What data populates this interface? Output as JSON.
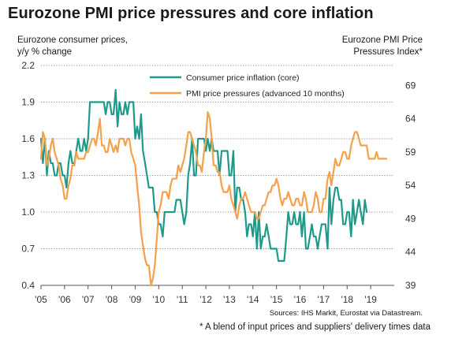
{
  "title": "Eurozone PMI price pressures and core inflation",
  "chart_data": {
    "type": "line",
    "title": "Eurozone PMI price pressures and core inflation",
    "ylabel_left": [
      "Eurozone consumer prices,",
      "y/y % change"
    ],
    "ylabel_right": [
      "Eurozone PMI Price",
      "Pressures Index*"
    ],
    "x_ticks": [
      "'05",
      "'06",
      "'07",
      "'08",
      "'09",
      "'10",
      "'11",
      "'12",
      "'13",
      "'14",
      "'15",
      "'16",
      "'17",
      "'18",
      "'19"
    ],
    "xlim": [
      2005.0,
      2020.0
    ],
    "ylim_left": [
      0.4,
      2.2
    ],
    "ylim_right": [
      39,
      72
    ],
    "y_ticks_left": [
      "0.4",
      "0.7",
      "1.0",
      "1.3",
      "1.6",
      "1.9",
      "2.2"
    ],
    "y_ticks_right": [
      "39",
      "44",
      "49",
      "54",
      "59",
      "64",
      "69"
    ],
    "grid": "horizontal dotted",
    "legend_position": "top-center",
    "series": [
      {
        "name": "Consumer price inflation (core)",
        "axis": "left",
        "color": "#1f9a8a",
        "x": [
          2005.0,
          2005.08,
          2005.17,
          2005.25,
          2005.33,
          2005.42,
          2005.5,
          2005.58,
          2005.67,
          2005.75,
          2005.83,
          2005.92,
          2006.0,
          2006.08,
          2006.17,
          2006.25,
          2006.33,
          2006.42,
          2006.5,
          2006.58,
          2006.67,
          2006.75,
          2006.83,
          2006.92,
          2007.0,
          2007.08,
          2007.17,
          2007.25,
          2007.33,
          2007.42,
          2007.5,
          2007.58,
          2007.67,
          2007.75,
          2007.83,
          2007.92,
          2008.0,
          2008.08,
          2008.17,
          2008.25,
          2008.33,
          2008.42,
          2008.5,
          2008.58,
          2008.67,
          2008.75,
          2008.83,
          2008.92,
          2009.0,
          2009.08,
          2009.17,
          2009.25,
          2009.33,
          2009.42,
          2009.5,
          2009.58,
          2009.67,
          2009.75,
          2009.83,
          2009.92,
          2010.0,
          2010.08,
          2010.17,
          2010.25,
          2010.33,
          2010.42,
          2010.5,
          2010.58,
          2010.67,
          2010.75,
          2010.83,
          2010.92,
          2011.0,
          2011.08,
          2011.17,
          2011.25,
          2011.33,
          2011.42,
          2011.5,
          2011.58,
          2011.67,
          2011.75,
          2011.83,
          2011.92,
          2012.0,
          2012.08,
          2012.17,
          2012.25,
          2012.33,
          2012.42,
          2012.5,
          2012.58,
          2012.67,
          2012.75,
          2012.83,
          2012.92,
          2013.0,
          2013.08,
          2013.17,
          2013.25,
          2013.33,
          2013.42,
          2013.5,
          2013.58,
          2013.67,
          2013.75,
          2013.83,
          2013.92,
          2014.0,
          2014.08,
          2014.17,
          2014.25,
          2014.33,
          2014.42,
          2014.5,
          2014.58,
          2014.67,
          2014.75,
          2014.83,
          2014.92,
          2015.0,
          2015.08,
          2015.17,
          2015.25,
          2015.33,
          2015.42,
          2015.5,
          2015.58,
          2015.67,
          2015.75,
          2015.83,
          2015.92,
          2016.0,
          2016.08,
          2016.17,
          2016.25,
          2016.33,
          2016.42,
          2016.5,
          2016.58,
          2016.67,
          2016.75,
          2016.83,
          2016.92,
          2017.0,
          2017.08,
          2017.17,
          2017.25,
          2017.33,
          2017.42,
          2017.5,
          2017.58,
          2017.67,
          2017.75,
          2017.83,
          2017.92,
          2018.0,
          2018.08,
          2018.17,
          2018.25,
          2018.33,
          2018.42,
          2018.5,
          2018.58,
          2018.67,
          2018.75,
          2018.83
        ],
        "values": [
          1.6,
          1.4,
          1.6,
          1.3,
          1.5,
          1.4,
          1.4,
          1.3,
          1.3,
          1.4,
          1.4,
          1.3,
          1.3,
          1.2,
          1.4,
          1.5,
          1.4,
          1.4,
          1.5,
          1.6,
          1.5,
          1.5,
          1.6,
          1.5,
          1.6,
          1.9,
          1.9,
          1.9,
          1.9,
          1.9,
          1.9,
          1.9,
          1.9,
          1.8,
          1.9,
          1.9,
          1.8,
          1.8,
          2.0,
          1.7,
          1.9,
          1.8,
          1.8,
          1.9,
          1.8,
          1.9,
          1.9,
          1.9,
          1.6,
          1.7,
          1.6,
          1.8,
          1.5,
          1.4,
          1.3,
          1.2,
          1.2,
          1.2,
          1.0,
          1.0,
          0.9,
          0.9,
          0.8,
          1.0,
          1.0,
          1.0,
          1.0,
          1.0,
          1.0,
          1.1,
          1.1,
          1.1,
          1.0,
          0.9,
          1.0,
          1.3,
          1.4,
          1.6,
          1.3,
          1.3,
          1.6,
          1.6,
          1.6,
          1.6,
          1.5,
          1.6,
          1.5,
          1.6,
          1.5,
          1.5,
          1.5,
          1.3,
          1.5,
          1.5,
          1.5,
          1.5,
          1.3,
          1.3,
          1.5,
          1.0,
          1.2,
          1.2,
          1.1,
          1.1,
          1.0,
          0.8,
          0.9,
          0.9,
          0.8,
          1.0,
          0.7,
          1.0,
          0.7,
          0.8,
          0.8,
          0.9,
          0.8,
          0.7,
          0.7,
          0.7,
          0.7,
          0.6,
          0.6,
          0.6,
          0.6,
          0.8,
          1.0,
          0.9,
          0.9,
          1.0,
          0.9,
          0.9,
          1.0,
          0.8,
          1.0,
          0.7,
          0.7,
          0.8,
          0.9,
          0.8,
          0.8,
          0.7,
          0.8,
          0.9,
          0.9,
          0.9,
          0.7,
          1.2,
          0.9,
          1.1,
          1.2,
          1.2,
          1.1,
          1.1,
          0.9,
          0.9,
          1.0,
          1.0,
          0.8,
          1.1,
          0.9,
          1.0,
          1.1,
          1.0,
          0.9,
          1.1,
          1.0
        ]
      },
      {
        "name": "PMI price pressures (advanced 10 months)",
        "axis": "right",
        "color": "#f5a04a",
        "x": [
          2005.0,
          2005.08,
          2005.17,
          2005.25,
          2005.33,
          2005.42,
          2005.5,
          2005.58,
          2005.67,
          2005.75,
          2005.83,
          2005.92,
          2006.0,
          2006.08,
          2006.17,
          2006.25,
          2006.33,
          2006.42,
          2006.5,
          2006.58,
          2006.67,
          2006.75,
          2006.83,
          2006.92,
          2007.0,
          2007.08,
          2007.17,
          2007.25,
          2007.33,
          2007.42,
          2007.5,
          2007.58,
          2007.67,
          2007.75,
          2007.83,
          2007.92,
          2008.0,
          2008.08,
          2008.17,
          2008.25,
          2008.33,
          2008.42,
          2008.5,
          2008.58,
          2008.67,
          2008.75,
          2008.83,
          2008.92,
          2009.0,
          2009.08,
          2009.17,
          2009.25,
          2009.33,
          2009.42,
          2009.5,
          2009.58,
          2009.67,
          2009.75,
          2009.83,
          2009.92,
          2010.0,
          2010.08,
          2010.17,
          2010.25,
          2010.33,
          2010.42,
          2010.5,
          2010.58,
          2010.67,
          2010.75,
          2010.83,
          2010.92,
          2011.0,
          2011.08,
          2011.17,
          2011.25,
          2011.33,
          2011.42,
          2011.5,
          2011.58,
          2011.67,
          2011.75,
          2011.83,
          2011.92,
          2012.0,
          2012.08,
          2012.17,
          2012.25,
          2012.33,
          2012.42,
          2012.5,
          2012.58,
          2012.67,
          2012.75,
          2012.83,
          2012.92,
          2013.0,
          2013.08,
          2013.17,
          2013.25,
          2013.33,
          2013.42,
          2013.5,
          2013.58,
          2013.67,
          2013.75,
          2013.83,
          2013.92,
          2014.0,
          2014.08,
          2014.17,
          2014.25,
          2014.33,
          2014.42,
          2014.5,
          2014.58,
          2014.67,
          2014.75,
          2014.83,
          2014.92,
          2015.0,
          2015.08,
          2015.17,
          2015.25,
          2015.33,
          2015.42,
          2015.5,
          2015.58,
          2015.67,
          2015.75,
          2015.83,
          2015.92,
          2016.0,
          2016.08,
          2016.17,
          2016.25,
          2016.33,
          2016.42,
          2016.5,
          2016.58,
          2016.67,
          2016.75,
          2016.83,
          2016.92,
          2017.0,
          2017.08,
          2017.17,
          2017.25,
          2017.33,
          2017.42,
          2017.5,
          2017.58,
          2017.67,
          2017.75,
          2017.83,
          2017.92,
          2018.0,
          2018.08,
          2018.17,
          2018.25,
          2018.33,
          2018.42,
          2018.5,
          2018.58,
          2018.67,
          2018.75,
          2018.83,
          2018.92,
          2019.0,
          2019.08,
          2019.17,
          2019.25,
          2019.33,
          2019.42,
          2019.5,
          2019.58,
          2019.67
        ],
        "values": [
          58,
          62,
          61,
          57,
          58,
          60,
          61,
          59,
          58,
          57,
          55,
          54,
          52,
          52,
          54,
          55,
          57,
          57,
          59,
          58,
          58,
          58,
          58,
          59,
          59,
          60,
          61,
          61,
          60,
          62,
          64,
          60,
          60,
          59,
          59,
          61,
          60,
          59,
          60,
          59,
          61,
          61,
          61,
          60,
          61,
          61,
          59,
          58,
          57,
          54,
          51,
          47,
          45,
          43,
          42,
          42,
          39,
          40,
          42,
          46,
          50,
          51,
          53,
          53,
          53,
          52,
          54,
          55,
          55,
          55,
          57,
          56,
          57,
          58,
          60,
          62,
          62,
          61,
          60,
          59,
          57,
          57,
          56,
          59,
          61,
          65,
          64,
          61,
          57,
          57,
          56,
          56,
          54,
          53,
          53,
          53,
          54,
          52,
          51,
          50,
          49,
          51,
          52,
          52,
          53,
          52,
          51,
          50,
          50,
          50,
          49,
          49,
          50,
          51,
          51,
          52,
          53,
          53,
          54,
          54,
          55,
          54,
          52,
          51,
          52,
          52,
          53,
          52,
          51,
          51,
          52,
          52,
          51,
          51,
          53,
          52,
          50,
          50,
          50,
          51,
          53,
          52,
          50,
          50,
          52,
          52,
          55,
          56,
          54,
          56,
          58,
          57,
          57,
          58,
          59,
          59,
          58,
          58,
          60,
          61,
          62,
          62,
          61,
          60,
          60,
          60,
          60,
          58,
          58,
          58,
          58,
          59,
          58,
          58,
          58,
          58,
          58
        ]
      }
    ]
  },
  "sources": "Sources: IHS Markit, Eurostat via Datastream.",
  "footnote": "* A blend of input prices and suppliers' delivery times data"
}
